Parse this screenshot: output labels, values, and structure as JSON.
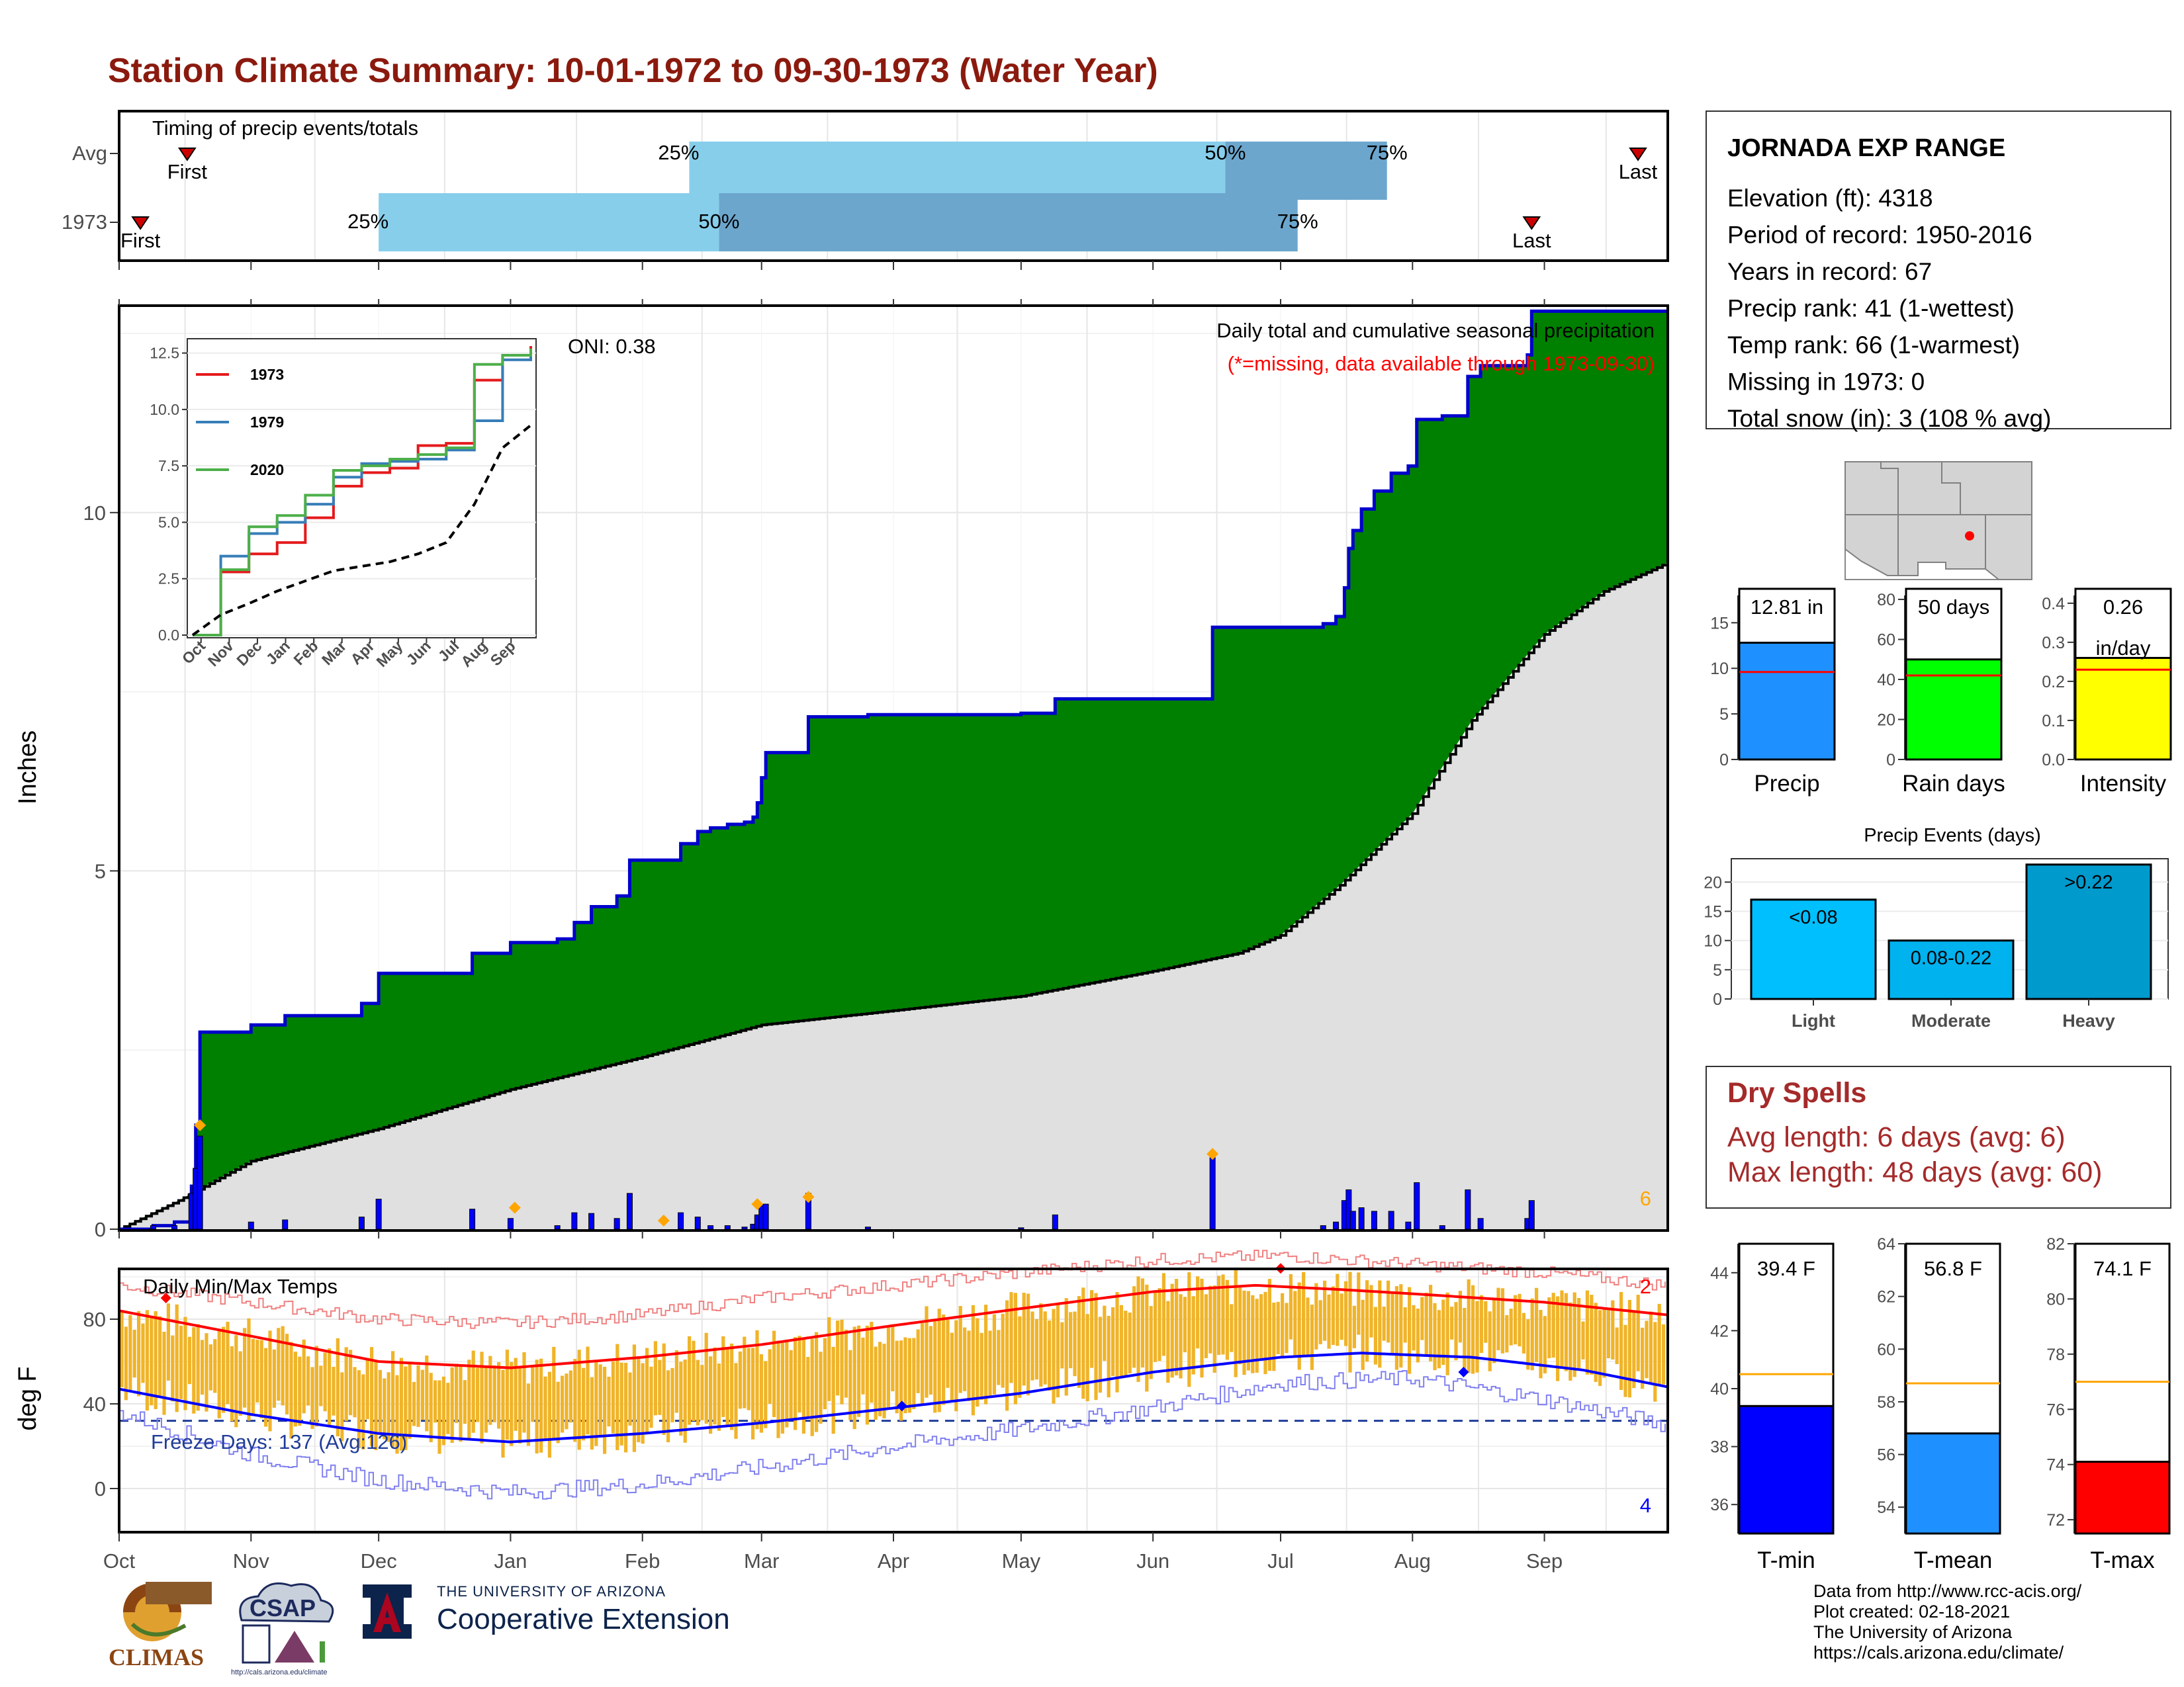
{
  "title": "Station Climate Summary: 10-01-1972 to 09-30-1973 (Water Year)",
  "colors": {
    "title": "#8b1a0e",
    "precip_fill": "#008000",
    "cum_line": "#0000cc",
    "avg_fill": "#e0e0e0",
    "bars": "#0000ff",
    "marker": "#ffa500",
    "tmax": "#ff0000",
    "tmin": "#0000ff",
    "temp_bars": "#f0b429",
    "timing_light": "#87ceeb",
    "timing_dark": "#6ca6cd",
    "dry_spells": "#a52a2a"
  },
  "timing": {
    "label": "Timing of precip events/totals",
    "rows": [
      {
        "name": "Avg",
        "first": "First",
        "last": "Last",
        "q25": "25%",
        "q50": "50%",
        "q75": "75%",
        "first_date": "1972-10-17",
        "p25_date": "1973-02-12",
        "p50_date": "1973-06-18",
        "p75_date": "1973-07-26",
        "last_date": "1973-09-23"
      },
      {
        "name": "1973",
        "first": "First",
        "last": "Last",
        "q25": "25%",
        "q50": "50%",
        "q75": "75%",
        "first_date": "1972-10-06",
        "p25_date": "1972-12-01",
        "p50_date": "1973-02-19",
        "p75_date": "1973-07-05",
        "last_date": "1973-08-29"
      }
    ]
  },
  "chart_data": [
    {
      "type": "area",
      "name": "Daily total and cumulative seasonal precipitation",
      "title": "Daily total and cumulative seasonal precipitation",
      "subtitle": "(*=missing, data available through 1973-09-30)",
      "ylabel": "Inches",
      "ylim": [
        0,
        12.5
      ],
      "yticks": [
        0,
        5,
        10
      ],
      "oni": "ONI: 0.38",
      "corner_count": "6",
      "xticks": [
        "Oct",
        "Nov",
        "Dec",
        "Jan",
        "Feb",
        "Mar",
        "Apr",
        "May",
        "Jun",
        "Jul",
        "Aug",
        "Sep"
      ],
      "cumulative_1973": [
        [
          "1972-10-01",
          0.0
        ],
        [
          "1972-10-09",
          0.05
        ],
        [
          "1972-10-14",
          0.1
        ],
        [
          "1972-10-18",
          0.6
        ],
        [
          "1972-10-19",
          1.45
        ],
        [
          "1972-10-20",
          2.75
        ],
        [
          "1972-11-01",
          2.85
        ],
        [
          "1972-11-09",
          2.98
        ],
        [
          "1972-11-27",
          3.15
        ],
        [
          "1972-12-01",
          3.57
        ],
        [
          "1972-12-23",
          3.85
        ],
        [
          "1973-01-01",
          4.0
        ],
        [
          "1973-01-12",
          4.05
        ],
        [
          "1973-01-16",
          4.28
        ],
        [
          "1973-01-20",
          4.5
        ],
        [
          "1973-01-26",
          4.65
        ],
        [
          "1973-01-29",
          5.15
        ],
        [
          "1973-02-10",
          5.38
        ],
        [
          "1973-02-14",
          5.55
        ],
        [
          "1973-02-17",
          5.6
        ],
        [
          "1973-02-21",
          5.65
        ],
        [
          "1973-02-25",
          5.68
        ],
        [
          "1973-02-27",
          5.75
        ],
        [
          "1973-02-28",
          5.95
        ],
        [
          "1973-03-01",
          6.3
        ],
        [
          "1973-03-02",
          6.65
        ],
        [
          "1973-03-12",
          7.15
        ],
        [
          "1973-03-26",
          7.18
        ],
        [
          "1973-05-01",
          7.2
        ],
        [
          "1973-05-09",
          7.4
        ],
        [
          "1973-06-15",
          8.4
        ],
        [
          "1973-07-11",
          8.45
        ],
        [
          "1973-07-14",
          8.55
        ],
        [
          "1973-07-16",
          8.95
        ],
        [
          "1973-07-17",
          9.5
        ],
        [
          "1973-07-18",
          9.75
        ],
        [
          "1973-07-20",
          10.05
        ],
        [
          "1973-07-23",
          10.3
        ],
        [
          "1973-07-27",
          10.55
        ],
        [
          "1973-07-31",
          10.65
        ],
        [
          "1973-08-02",
          11.3
        ],
        [
          "1973-08-08",
          11.35
        ],
        [
          "1973-08-14",
          11.9
        ],
        [
          "1973-08-17",
          12.05
        ],
        [
          "1973-08-28",
          12.2
        ],
        [
          "1973-08-29",
          12.81
        ],
        [
          "1973-09-30",
          12.81
        ]
      ],
      "cumulative_avg": [
        [
          "1972-10-01",
          0.0
        ],
        [
          "1972-10-15",
          0.4
        ],
        [
          "1972-11-01",
          0.95
        ],
        [
          "1972-12-01",
          1.4
        ],
        [
          "1973-01-01",
          1.95
        ],
        [
          "1973-02-01",
          2.4
        ],
        [
          "1973-03-01",
          2.85
        ],
        [
          "1973-04-01",
          3.05
        ],
        [
          "1973-05-01",
          3.25
        ],
        [
          "1973-06-01",
          3.6
        ],
        [
          "1973-06-21",
          3.85
        ],
        [
          "1973-07-01",
          4.1
        ],
        [
          "1973-07-15",
          4.8
        ],
        [
          "1973-08-01",
          5.8
        ],
        [
          "1973-08-15",
          7.1
        ],
        [
          "1973-09-01",
          8.3
        ],
        [
          "1973-09-15",
          8.9
        ],
        [
          "1973-09-30",
          9.3
        ]
      ],
      "daily_precip": [
        [
          "1972-10-09",
          0.05
        ],
        [
          "1972-10-14",
          0.05
        ],
        [
          "1972-10-18",
          0.5
        ],
        [
          "1972-10-19",
          0.85
        ],
        [
          "1972-10-20",
          1.3
        ],
        [
          "1972-11-01",
          0.1
        ],
        [
          "1972-11-09",
          0.13
        ],
        [
          "1972-11-27",
          0.17
        ],
        [
          "1972-12-01",
          0.42
        ],
        [
          "1972-12-23",
          0.28
        ],
        [
          "1973-01-01",
          0.15
        ],
        [
          "1973-01-12",
          0.05
        ],
        [
          "1973-01-16",
          0.23
        ],
        [
          "1973-01-20",
          0.22
        ],
        [
          "1973-01-26",
          0.15
        ],
        [
          "1973-01-29",
          0.5
        ],
        [
          "1973-02-10",
          0.23
        ],
        [
          "1973-02-14",
          0.17
        ],
        [
          "1973-02-17",
          0.05
        ],
        [
          "1973-02-21",
          0.05
        ],
        [
          "1973-02-25",
          0.03
        ],
        [
          "1973-02-27",
          0.07
        ],
        [
          "1973-02-28",
          0.2
        ],
        [
          "1973-03-01",
          0.35
        ],
        [
          "1973-03-02",
          0.35
        ],
        [
          "1973-03-12",
          0.5
        ],
        [
          "1973-03-26",
          0.03
        ],
        [
          "1973-05-01",
          0.02
        ],
        [
          "1973-05-09",
          0.2
        ],
        [
          "1973-06-15",
          1.0
        ],
        [
          "1973-07-11",
          0.05
        ],
        [
          "1973-07-14",
          0.1
        ],
        [
          "1973-07-16",
          0.4
        ],
        [
          "1973-07-17",
          0.55
        ],
        [
          "1973-07-18",
          0.25
        ],
        [
          "1973-07-20",
          0.3
        ],
        [
          "1973-07-23",
          0.25
        ],
        [
          "1973-07-27",
          0.25
        ],
        [
          "1973-07-31",
          0.1
        ],
        [
          "1973-08-02",
          0.65
        ],
        [
          "1973-08-08",
          0.05
        ],
        [
          "1973-08-14",
          0.55
        ],
        [
          "1973-08-17",
          0.15
        ],
        [
          "1973-08-28",
          0.15
        ],
        [
          "1973-08-29",
          0.4
        ]
      ],
      "snow_markers": [
        [
          "1972-10-20",
          1.45
        ],
        [
          "1973-01-02",
          0.3
        ],
        [
          "1973-02-06",
          0.12
        ],
        [
          "1973-02-28",
          0.35
        ],
        [
          "1973-03-12",
          0.45
        ],
        [
          "1973-06-15",
          1.05
        ]
      ]
    },
    {
      "type": "line",
      "name": "Daily Min/Max Temps",
      "title": "Daily Min/Max Temps",
      "ylabel": "deg F",
      "ylim": [
        -20,
        100
      ],
      "yticks": [
        0,
        40,
        80
      ],
      "freeze_line": 32,
      "freeze_label": "Freeze Days: 137 (Avg:126)",
      "count_top": "2",
      "count_bottom": "4",
      "xticks": [
        "Oct",
        "Nov",
        "Dec",
        "Jan",
        "Feb",
        "Mar",
        "Apr",
        "May",
        "Jun",
        "Jul",
        "Aug",
        "Sep"
      ],
      "avg_tmax": [
        [
          "1972-10-01",
          84
        ],
        [
          "1972-11-01",
          72
        ],
        [
          "1972-12-01",
          60
        ],
        [
          "1973-01-01",
          57
        ],
        [
          "1973-02-01",
          62
        ],
        [
          "1973-03-01",
          68
        ],
        [
          "1973-04-01",
          77
        ],
        [
          "1973-05-01",
          85
        ],
        [
          "1973-06-01",
          93
        ],
        [
          "1973-06-25",
          96
        ],
        [
          "1973-07-15",
          94
        ],
        [
          "1973-08-01",
          92
        ],
        [
          "1973-09-01",
          88
        ],
        [
          "1973-09-30",
          82
        ]
      ],
      "avg_tmin": [
        [
          "1972-10-01",
          47
        ],
        [
          "1972-11-01",
          35
        ],
        [
          "1972-12-01",
          26
        ],
        [
          "1973-01-01",
          22
        ],
        [
          "1973-02-01",
          26
        ],
        [
          "1973-03-01",
          31
        ],
        [
          "1973-04-01",
          38
        ],
        [
          "1973-05-01",
          45
        ],
        [
          "1973-06-01",
          55
        ],
        [
          "1973-07-01",
          62
        ],
        [
          "1973-07-20",
          64
        ],
        [
          "1973-08-15",
          62
        ],
        [
          "1973-09-10",
          56
        ],
        [
          "1973-09-30",
          48
        ]
      ],
      "record_high": [
        [
          "1972-10-01",
          96
        ],
        [
          "1972-11-01",
          88
        ],
        [
          "1972-12-01",
          80
        ],
        [
          "1973-01-01",
          78
        ],
        [
          "1973-02-01",
          82
        ],
        [
          "1973-03-01",
          90
        ],
        [
          "1973-04-01",
          96
        ],
        [
          "1973-05-01",
          102
        ],
        [
          "1973-06-01",
          108
        ],
        [
          "1973-07-01",
          110
        ],
        [
          "1973-08-01",
          106
        ],
        [
          "1973-09-01",
          102
        ],
        [
          "1973-09-30",
          96
        ]
      ],
      "record_low": [
        [
          "1972-10-01",
          36
        ],
        [
          "1972-11-01",
          16
        ],
        [
          "1972-12-01",
          4
        ],
        [
          "1973-01-01",
          -2
        ],
        [
          "1973-02-01",
          2
        ],
        [
          "1973-03-01",
          10
        ],
        [
          "1973-04-01",
          20
        ],
        [
          "1973-05-01",
          28
        ],
        [
          "1973-06-01",
          38
        ],
        [
          "1973-07-01",
          50
        ],
        [
          "1973-08-01",
          52
        ],
        [
          "1973-09-01",
          42
        ],
        [
          "1973-09-30",
          30
        ]
      ],
      "extreme_points": [
        {
          "date": "1972-10-12",
          "value": 90,
          "series": "tmax"
        },
        {
          "date": "1973-07-01",
          "value": 104,
          "series": "tmax"
        },
        {
          "date": "1973-04-03",
          "value": 39,
          "series": "tmin"
        },
        {
          "date": "1973-08-13",
          "value": 55,
          "series": "tmin"
        }
      ]
    }
  ],
  "inset": {
    "type": "line",
    "yticks": [
      "0.0",
      "2.5",
      "5.0",
      "7.5",
      "10.0",
      "12.5"
    ],
    "ylim": [
      0,
      12.5
    ],
    "xticks": [
      "Oct",
      "Nov",
      "Dec",
      "Jan",
      "Feb",
      "Mar",
      "Apr",
      "May",
      "Jun",
      "Jul",
      "Aug",
      "Sep"
    ],
    "series": [
      {
        "name": "1973",
        "color": "#e41a1c",
        "values": [
          0,
          2.8,
          3.6,
          4.1,
          5.2,
          6.6,
          7.2,
          7.4,
          8.4,
          8.5,
          11.3,
          12.4,
          12.81
        ]
      },
      {
        "name": "1979",
        "color": "#377eb8",
        "values": [
          0,
          3.5,
          4.5,
          5.0,
          5.8,
          7.0,
          7.6,
          7.7,
          7.8,
          8.2,
          9.5,
          12.2,
          12.6
        ]
      },
      {
        "name": "2020",
        "color": "#4daf4a",
        "values": [
          0,
          2.9,
          4.8,
          5.3,
          6.2,
          7.3,
          7.5,
          7.8,
          8.0,
          8.3,
          12.0,
          12.4,
          12.7
        ]
      },
      {
        "name": "avg",
        "color": "#000000",
        "dashed": true,
        "values": [
          0,
          0.9,
          1.4,
          1.95,
          2.4,
          2.85,
          3.05,
          3.25,
          3.6,
          4.1,
          5.8,
          8.3,
          9.3
        ]
      }
    ]
  },
  "station": {
    "name": "JORNADA EXP RANGE",
    "lines": [
      "Elevation (ft): 4318",
      "Period of record: 1950-2016",
      "Years in record: 67",
      "Precip rank: 41 (1-wettest)",
      "Temp rank: 66 (1-warmest)",
      "Missing in 1973: 0",
      "Total snow (in): 3 (108 % avg)"
    ]
  },
  "summary_bars": [
    {
      "label": "Precip",
      "value": 12.81,
      "avg": 9.6,
      "text": "12.81 in",
      "ylim": [
        0,
        18
      ],
      "yticks": [
        "0",
        "5",
        "10",
        "15"
      ],
      "color": "#1e90ff"
    },
    {
      "label": "Rain days",
      "value": 50,
      "avg": 42,
      "text": "50 days",
      "ylim": [
        0,
        82
      ],
      "yticks": [
        "0",
        "20",
        "40",
        "60",
        "80"
      ],
      "color": "#00ff00"
    },
    {
      "label": "Intensity",
      "value": 0.26,
      "avg": 0.23,
      "text": "0.26",
      "text2": "in/day",
      "ylim": [
        0,
        0.42
      ],
      "yticks": [
        "0.0",
        "0.1",
        "0.2",
        "0.3",
        "0.4"
      ],
      "color": "#ffff00"
    }
  ],
  "events": {
    "title": "Precip Events (days)",
    "categories": [
      "Light",
      "Moderate",
      "Heavy"
    ],
    "values": [
      17,
      10,
      23
    ],
    "labels": [
      "<0.08",
      "0.08-0.22",
      ">0.22"
    ],
    "colors": [
      "#00bfff",
      "#00b2ee",
      "#009acd"
    ],
    "ylim": [
      0,
      24
    ],
    "yticks": [
      "0",
      "5",
      "10",
      "15",
      "20"
    ]
  },
  "dry_spells": {
    "title": "Dry Spells",
    "lines": [
      "Avg length: 6 days (avg: 6)",
      "Max length: 48 days (avg: 60)"
    ]
  },
  "temp_bars": [
    {
      "label": "T-min",
      "value": 39.4,
      "avg": 40.5,
      "text": "39.4 F",
      "ylim": [
        35,
        45
      ],
      "yticks": [
        "36",
        "38",
        "40",
        "42",
        "44"
      ],
      "color": "#0000ff"
    },
    {
      "label": "T-mean",
      "value": 56.8,
      "avg": 58.7,
      "text": "56.8 F",
      "ylim": [
        53,
        64
      ],
      "yticks": [
        "54",
        "56",
        "58",
        "60",
        "62",
        "64"
      ],
      "color": "#1e90ff"
    },
    {
      "label": "T-max",
      "value": 74.1,
      "avg": 77.0,
      "text": "74.1 F",
      "ylim": [
        71.5,
        82
      ],
      "yticks": [
        "72",
        "74",
        "76",
        "78",
        "80",
        "82"
      ],
      "color": "#ff0000"
    }
  ],
  "logos": {
    "climas": "CLIMAS",
    "csap": "CSAP",
    "csap_url": "http://cals.arizona.edu/climate",
    "ua_small": "THE UNIVERSITY OF ARIZONA",
    "ua_big": "Cooperative Extension"
  },
  "credits": [
    "Data from http://www.rcc-acis.org/",
    "Plot created: 02-18-2021",
    "The University of Arizona",
    "https://cals.arizona.edu/climate/"
  ]
}
